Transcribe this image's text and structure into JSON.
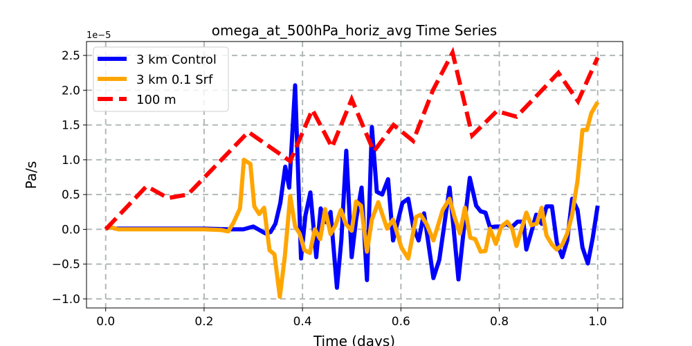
{
  "chart_data": {
    "type": "line",
    "title": "omega_at_500hPa_horiz_avg Time Series",
    "xlabel": "Time (days)",
    "ylabel": "Pa/s",
    "y_multiplier_label": "1e−5",
    "xlim": [
      -0.039,
      1.051
    ],
    "ylim": [
      -1.13,
      2.7
    ],
    "xticks": [
      0.0,
      0.2,
      0.4,
      0.6,
      0.8,
      1.0
    ],
    "xtick_labels": [
      "0.0",
      "0.2",
      "0.4",
      "0.6",
      "0.8",
      "1.0"
    ],
    "yticks": [
      -1.0,
      -0.5,
      0.0,
      0.5,
      1.0,
      1.5,
      2.0,
      2.5
    ],
    "ytick_labels": [
      "−1.0",
      "−0.5",
      "0.0",
      "0.5",
      "1.0",
      "1.5",
      "2.0",
      "2.5"
    ],
    "grid": true,
    "legend_position": "upper-left",
    "series": [
      {
        "name": "3 km Control",
        "color": "#0000ff",
        "style": "solid",
        "points": [
          [
            0,
            0.02
          ],
          [
            0.01,
            0.03
          ],
          [
            0.02,
            0.01
          ],
          [
            0.1,
            0.01
          ],
          [
            0.2,
            0.01
          ],
          [
            0.25,
            0.0
          ],
          [
            0.28,
            0.0
          ],
          [
            0.3,
            0.04
          ],
          [
            0.325,
            -0.06
          ],
          [
            0.335,
            -0.04
          ],
          [
            0.345,
            0.08
          ],
          [
            0.355,
            0.38
          ],
          [
            0.365,
            0.9
          ],
          [
            0.373,
            0.6
          ],
          [
            0.385,
            2.07
          ],
          [
            0.397,
            -0.42
          ],
          [
            0.406,
            0.2
          ],
          [
            0.416,
            0.53
          ],
          [
            0.428,
            -0.4
          ],
          [
            0.437,
            0.3
          ],
          [
            0.449,
            0.1
          ],
          [
            0.457,
            0.25
          ],
          [
            0.47,
            -0.84
          ],
          [
            0.479,
            -0.15
          ],
          [
            0.489,
            1.13
          ],
          [
            0.5,
            -0.4
          ],
          [
            0.509,
            0.14
          ],
          [
            0.52,
            0.6
          ],
          [
            0.531,
            -0.73
          ],
          [
            0.541,
            1.47
          ],
          [
            0.551,
            0.54
          ],
          [
            0.562,
            0.5
          ],
          [
            0.574,
            0.72
          ],
          [
            0.584,
            -0.16
          ],
          [
            0.603,
            0.38
          ],
          [
            0.615,
            0.44
          ],
          [
            0.625,
            0.04
          ],
          [
            0.636,
            -0.16
          ],
          [
            0.647,
            0.23
          ],
          [
            0.666,
            -0.7
          ],
          [
            0.678,
            -0.44
          ],
          [
            0.699,
            0.6
          ],
          [
            0.709,
            -0.12
          ],
          [
            0.717,
            -0.72
          ],
          [
            0.729,
            0.08
          ],
          [
            0.74,
            0.74
          ],
          [
            0.753,
            0.34
          ],
          [
            0.762,
            0.26
          ],
          [
            0.772,
            0.24
          ],
          [
            0.781,
            0.03
          ],
          [
            0.793,
            0.04
          ],
          [
            0.804,
            0.04
          ],
          [
            0.814,
            0.08
          ],
          [
            0.825,
            0.03
          ],
          [
            0.837,
            0.11
          ],
          [
            0.849,
            0.11
          ],
          [
            0.855,
            -0.29
          ],
          [
            0.875,
            0.21
          ],
          [
            0.886,
            0.08
          ],
          [
            0.896,
            0.33
          ],
          [
            0.907,
            0.33
          ],
          [
            0.917,
            -0.19
          ],
          [
            0.928,
            -0.4
          ],
          [
            0.938,
            -0.16
          ],
          [
            0.948,
            0.44
          ],
          [
            0.959,
            0.28
          ],
          [
            0.969,
            -0.26
          ],
          [
            0.98,
            -0.49
          ],
          [
            0.99,
            -0.12
          ],
          [
            1.0,
            0.34
          ]
        ]
      },
      {
        "name": "3 km 0.1 Srf",
        "color": "#ffa500",
        "style": "solid",
        "points": [
          [
            0,
            0.02
          ],
          [
            0.01,
            0.03
          ],
          [
            0.025,
            0.0
          ],
          [
            0.1,
            0.0
          ],
          [
            0.2,
            0.0
          ],
          [
            0.235,
            -0.01
          ],
          [
            0.249,
            -0.03
          ],
          [
            0.26,
            0.1
          ],
          [
            0.273,
            0.3
          ],
          [
            0.281,
            1.0
          ],
          [
            0.294,
            0.94
          ],
          [
            0.302,
            0.33
          ],
          [
            0.312,
            0.22
          ],
          [
            0.322,
            0.31
          ],
          [
            0.333,
            -0.3
          ],
          [
            0.343,
            -0.36
          ],
          [
            0.354,
            -0.97
          ],
          [
            0.364,
            -0.4
          ],
          [
            0.375,
            0.48
          ],
          [
            0.385,
            0.04
          ],
          [
            0.394,
            -0.06
          ],
          [
            0.404,
            -0.3
          ],
          [
            0.415,
            -0.34
          ],
          [
            0.425,
            0.0
          ],
          [
            0.436,
            -0.14
          ],
          [
            0.446,
            0.29
          ],
          [
            0.457,
            -0.07
          ],
          [
            0.467,
            0.06
          ],
          [
            0.478,
            0.28
          ],
          [
            0.488,
            0.08
          ],
          [
            0.5,
            -0.02
          ],
          [
            0.509,
            0.4
          ],
          [
            0.519,
            0.34
          ],
          [
            0.531,
            -0.32
          ],
          [
            0.541,
            0.14
          ],
          [
            0.554,
            0.39
          ],
          [
            0.572,
            0.01
          ],
          [
            0.584,
            0.14
          ],
          [
            0.601,
            -0.26
          ],
          [
            0.615,
            -0.42
          ],
          [
            0.631,
            0.18
          ],
          [
            0.64,
            0.21
          ],
          [
            0.652,
            0.08
          ],
          [
            0.666,
            -0.16
          ],
          [
            0.685,
            0.28
          ],
          [
            0.699,
            0.44
          ],
          [
            0.709,
            0.18
          ],
          [
            0.72,
            -0.06
          ],
          [
            0.73,
            0.31
          ],
          [
            0.741,
            -0.12
          ],
          [
            0.751,
            -0.14
          ],
          [
            0.762,
            -0.32
          ],
          [
            0.772,
            -0.31
          ],
          [
            0.781,
            0.01
          ],
          [
            0.793,
            -0.21
          ],
          [
            0.804,
            0.04
          ],
          [
            0.816,
            0.11
          ],
          [
            0.826,
            0.01
          ],
          [
            0.835,
            -0.24
          ],
          [
            0.855,
            0.24
          ],
          [
            0.865,
            0.06
          ],
          [
            0.876,
            0.08
          ],
          [
            0.886,
            0.31
          ],
          [
            0.896,
            -0.09
          ],
          [
            0.907,
            -0.22
          ],
          [
            0.917,
            -0.29
          ],
          [
            0.928,
            -0.22
          ],
          [
            0.938,
            -0.06
          ],
          [
            0.948,
            0.21
          ],
          [
            0.959,
            0.7
          ],
          [
            0.969,
            1.43
          ],
          [
            0.978,
            1.43
          ],
          [
            0.987,
            1.67
          ],
          [
            1.0,
            1.83
          ]
        ]
      },
      {
        "name": "100 m",
        "color": "#ff0000",
        "style": "dashed",
        "points": [
          [
            0.0,
            0.0
          ],
          [
            0.083,
            0.62
          ],
          [
            0.127,
            0.45
          ],
          [
            0.167,
            0.5
          ],
          [
            0.29,
            1.4
          ],
          [
            0.375,
            0.98
          ],
          [
            0.42,
            1.72
          ],
          [
            0.46,
            1.18
          ],
          [
            0.5,
            1.87
          ],
          [
            0.545,
            1.12
          ],
          [
            0.585,
            1.5
          ],
          [
            0.625,
            1.27
          ],
          [
            0.665,
            2.0
          ],
          [
            0.705,
            2.54
          ],
          [
            0.745,
            1.35
          ],
          [
            0.795,
            1.7
          ],
          [
            0.835,
            1.62
          ],
          [
            0.88,
            1.95
          ],
          [
            0.92,
            2.25
          ],
          [
            0.96,
            1.84
          ],
          [
            1.0,
            2.47
          ]
        ]
      }
    ]
  }
}
